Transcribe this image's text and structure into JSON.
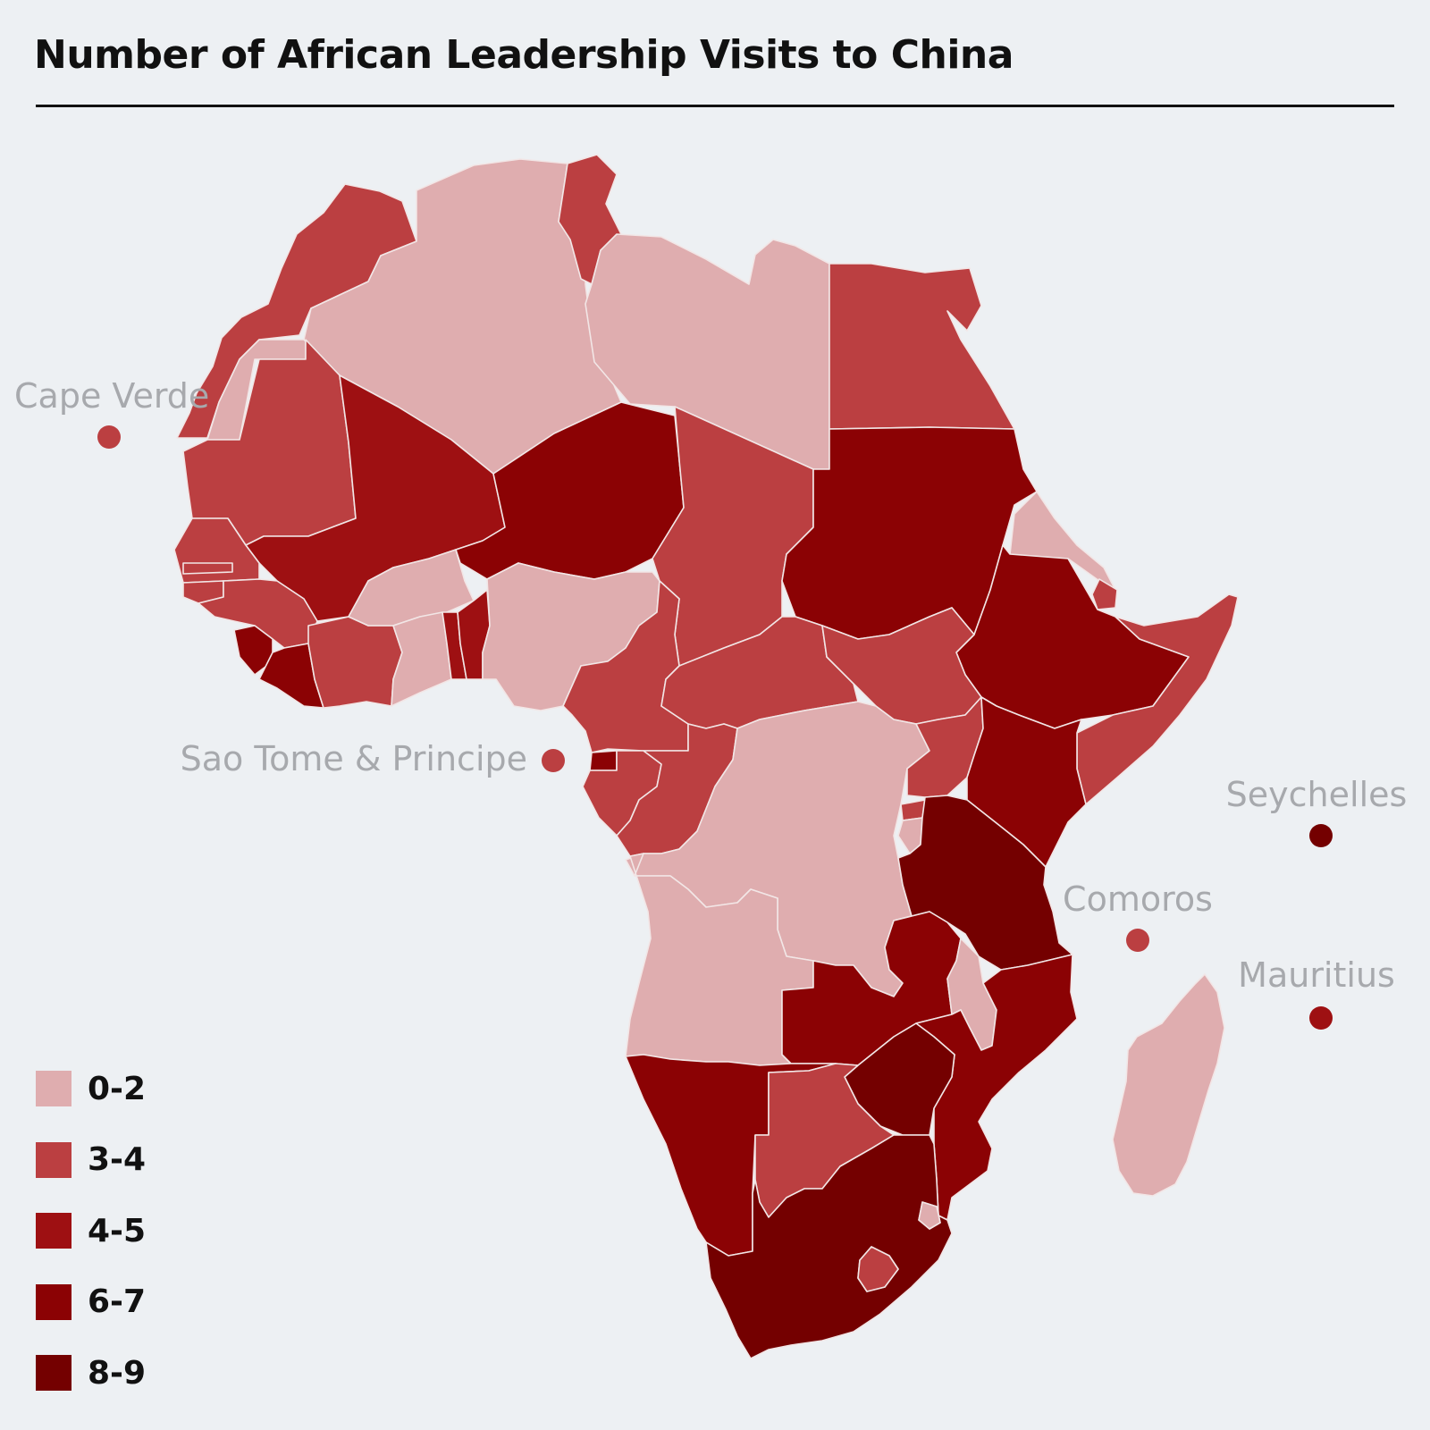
{
  "title": "Number of African Leadership Visits to China",
  "legend": {
    "items": [
      {
        "label": "0-2",
        "color": "#dfadaf"
      },
      {
        "label": "3-4",
        "color": "#bb3f41"
      },
      {
        "label": "4-5",
        "color": "#9e1012"
      },
      {
        "label": "6-7",
        "color": "#8b0204"
      },
      {
        "label": "8-9",
        "color": "#740000"
      }
    ]
  },
  "islands": [
    {
      "name": "Cape Verde",
      "category": "3-4"
    },
    {
      "name": "Sao Tome & Principe",
      "category": "3-4"
    },
    {
      "name": "Seychelles",
      "category": "8-9"
    },
    {
      "name": "Comoros",
      "category": "3-4"
    },
    {
      "name": "Mauritius",
      "category": "4-5"
    }
  ],
  "countries": [
    {
      "id": "morocco",
      "category": "3-4"
    },
    {
      "id": "western-sahara",
      "category": "0-2"
    },
    {
      "id": "algeria",
      "category": "0-2"
    },
    {
      "id": "tunisia",
      "category": "3-4"
    },
    {
      "id": "libya",
      "category": "0-2"
    },
    {
      "id": "egypt",
      "category": "3-4"
    },
    {
      "id": "mauritania",
      "category": "3-4"
    },
    {
      "id": "mali",
      "category": "4-5"
    },
    {
      "id": "niger",
      "category": "6-7"
    },
    {
      "id": "chad",
      "category": "3-4"
    },
    {
      "id": "sudan",
      "category": "6-7"
    },
    {
      "id": "eritrea",
      "category": "0-2"
    },
    {
      "id": "djibouti",
      "category": "3-4"
    },
    {
      "id": "ethiopia",
      "category": "6-7"
    },
    {
      "id": "somalia",
      "category": "3-4"
    },
    {
      "id": "senegal",
      "category": "3-4"
    },
    {
      "id": "gambia",
      "category": "3-4"
    },
    {
      "id": "guinea-bissau",
      "category": "3-4"
    },
    {
      "id": "guinea",
      "category": "3-4"
    },
    {
      "id": "sierra-leone",
      "category": "6-7"
    },
    {
      "id": "liberia",
      "category": "6-7"
    },
    {
      "id": "cote-divoire",
      "category": "3-4"
    },
    {
      "id": "burkina-faso",
      "category": "0-2"
    },
    {
      "id": "ghana",
      "category": "0-2"
    },
    {
      "id": "togo",
      "category": "4-5"
    },
    {
      "id": "benin",
      "category": "4-5"
    },
    {
      "id": "nigeria",
      "category": "0-2"
    },
    {
      "id": "cameroon",
      "category": "3-4"
    },
    {
      "id": "central-african-republic",
      "category": "3-4"
    },
    {
      "id": "south-sudan",
      "category": "3-4"
    },
    {
      "id": "equatorial-guinea",
      "category": "6-7"
    },
    {
      "id": "gabon",
      "category": "3-4"
    },
    {
      "id": "republic-of-congo",
      "category": "3-4"
    },
    {
      "id": "dr-congo",
      "category": "0-2"
    },
    {
      "id": "uganda",
      "category": "3-4"
    },
    {
      "id": "kenya",
      "category": "6-7"
    },
    {
      "id": "rwanda",
      "category": "3-4"
    },
    {
      "id": "burundi",
      "category": "0-2"
    },
    {
      "id": "tanzania",
      "category": "8-9"
    },
    {
      "id": "angola",
      "category": "0-2"
    },
    {
      "id": "zambia",
      "category": "6-7"
    },
    {
      "id": "malawi",
      "category": "0-2"
    },
    {
      "id": "mozambique",
      "category": "6-7"
    },
    {
      "id": "zimbabwe",
      "category": "8-9"
    },
    {
      "id": "namibia",
      "category": "6-7"
    },
    {
      "id": "botswana",
      "category": "3-4"
    },
    {
      "id": "south-africa",
      "category": "8-9"
    },
    {
      "id": "lesotho",
      "category": "3-4"
    },
    {
      "id": "eswatini",
      "category": "0-2"
    },
    {
      "id": "madagascar",
      "category": "0-2"
    }
  ]
}
